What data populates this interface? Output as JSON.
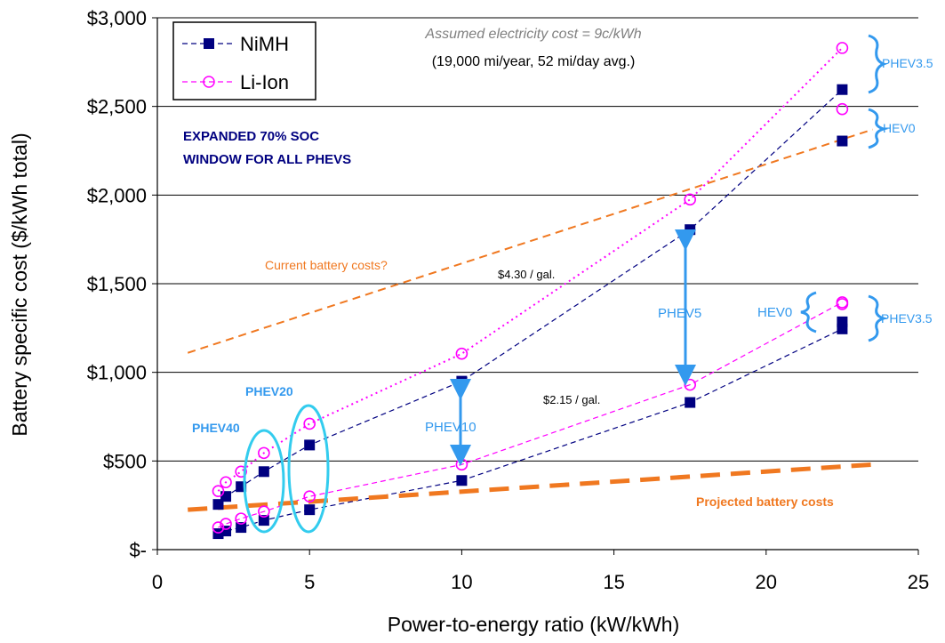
{
  "chart_data": {
    "type": "scatter",
    "xlabel": "Power-to-energy ratio (kW/kWh)",
    "ylabel": "Battery specific cost ($/kWh total)",
    "xlim": [
      0,
      25
    ],
    "ylim": [
      0,
      3000
    ],
    "x_ticks": [
      "0",
      "5",
      "10",
      "15",
      "20",
      "25"
    ],
    "y_ticks": [
      "$-",
      "$500",
      "$1,000",
      "$1,500",
      "$2,000",
      "$2,500",
      "$3,000"
    ],
    "grid": "horizontal",
    "legend_position": "top-left",
    "series": [
      {
        "name": "NiMH",
        "group": "high",
        "x": [
          2,
          2.25,
          2.75,
          3.5,
          5,
          10,
          17.5,
          22.5
        ],
        "y": [
          255,
          300,
          355,
          440,
          590,
          950,
          1805,
          2595
        ]
      },
      {
        "name": "Li-Ion",
        "group": "high",
        "x": [
          2,
          2.25,
          2.75,
          3.5,
          5,
          10,
          17.5,
          22.5
        ],
        "y": [
          330,
          380,
          440,
          545,
          710,
          1105,
          1975,
          2830
        ]
      },
      {
        "name": "NiMH",
        "group": "low",
        "x": [
          2,
          2.25,
          2.75,
          3.5,
          5,
          10,
          17.5,
          22.5
        ],
        "y": [
          90,
          105,
          125,
          165,
          225,
          390,
          830,
          1245
        ]
      },
      {
        "name": "Li-Ion",
        "group": "low",
        "x": [
          2,
          2.25,
          2.75,
          3.5,
          5,
          10,
          17.5,
          22.5
        ],
        "y": [
          125,
          145,
          175,
          215,
          300,
          480,
          930,
          1395
        ]
      },
      {
        "name": "NiMH",
        "group": "hev0-high",
        "x": [
          22.5
        ],
        "y": [
          2305
        ]
      },
      {
        "name": "Li-Ion",
        "group": "hev0-high",
        "x": [
          22.5
        ],
        "y": [
          2485
        ]
      },
      {
        "name": "NiMH",
        "group": "hev0-low",
        "x": [
          22.5
        ],
        "y": [
          1285
        ]
      },
      {
        "name": "Li-Ion",
        "group": "hev0-low",
        "x": [
          22.5
        ],
        "y": [
          1385
        ]
      }
    ],
    "trend_lines": [
      {
        "name": "Current battery costs?",
        "x": [
          1,
          23.5
        ],
        "y": [
          1110,
          2370
        ]
      },
      {
        "name": "Projected battery costs",
        "x": [
          1,
          23.5
        ],
        "y": [
          225,
          480
        ]
      }
    ],
    "annotations": {
      "cost_note": "Assumed electricity cost = 9c/kWh",
      "mileage_note": "(19,000 mi/year, 52 mi/day avg.)",
      "soc_line1": "EXPANDED 70% SOC",
      "soc_line2": "WINDOW FOR ALL PHEVS",
      "current_costs": "Current battery costs?",
      "projected_costs": "Projected battery costs",
      "gas_high": "$4.30 / gal.",
      "gas_low": "$2.15 / gal.",
      "phev40": "PHEV40",
      "phev20": "PHEV20",
      "phev10": "PHEV10",
      "phev5": "PHEV5",
      "phev35_top": "PHEV3.5",
      "hev0_top": "HEV0",
      "hev0_mid": "HEV0",
      "phev35_mid": "PHEV3.5"
    },
    "colors": {
      "nimh": "#000080",
      "li_ion": "#ff00ff",
      "trend": "#f07820",
      "annotation_blue": "#3399ee",
      "ellipse": "#33ccee",
      "soc_text": "#000080",
      "note_gray": "#808080"
    }
  }
}
